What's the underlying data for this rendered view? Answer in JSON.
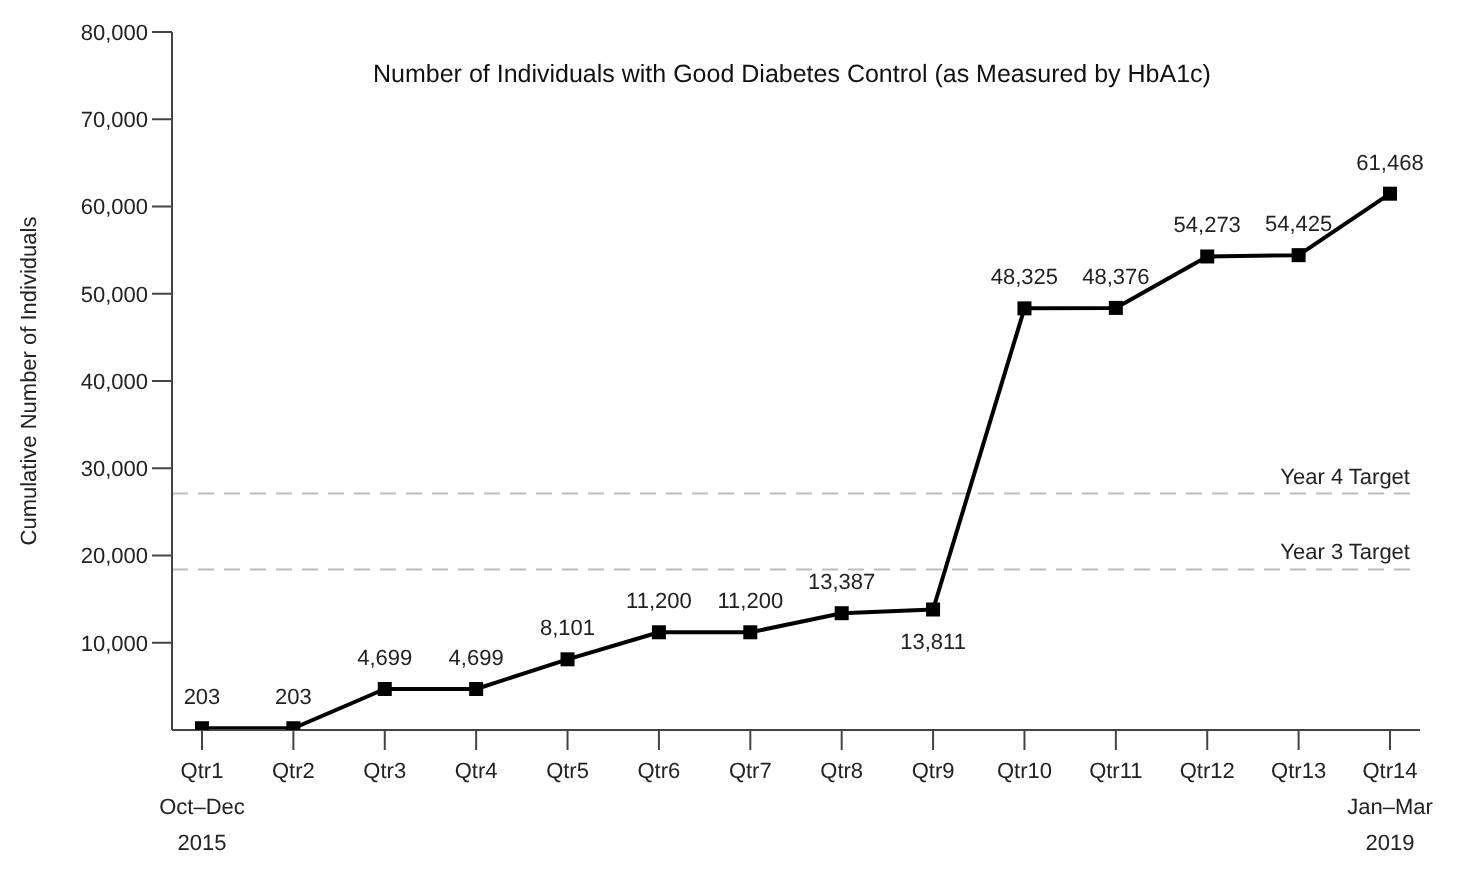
{
  "chart_data": {
    "type": "line",
    "title": "Number of Individuals with Good Diabetes Control (as Measured by HbA1c)",
    "ylabel": "Cumulative Number of Individuals",
    "categories": [
      "Qtr1\nOct–Dec\n2015",
      "Qtr2",
      "Qtr3",
      "Qtr4",
      "Qtr5",
      "Qtr6",
      "Qtr7",
      "Qtr8",
      "Qtr9",
      "Qtr10",
      "Qtr11",
      "Qtr12",
      "Qtr13",
      "Qtr14\nJan–Mar\n2019"
    ],
    "series": [
      {
        "color": "#000000",
        "values": [
          203,
          203,
          4699,
          4699,
          8101,
          11200,
          11200,
          13387,
          13811,
          48325,
          48376,
          54273,
          54425,
          61468
        ],
        "value_labels": [
          "203",
          "203",
          "4,699",
          "4,699",
          "8,101",
          "11,200",
          "11,200",
          "13,387",
          "13,811",
          "48,325",
          "48,376",
          "54,273",
          "54,425",
          "61,468"
        ]
      }
    ],
    "ylim": [
      0,
      80000
    ],
    "yticks": [
      {
        "value": 10000,
        "label": "10,000"
      },
      {
        "value": 20000,
        "label": "20,000"
      },
      {
        "value": 30000,
        "label": "30,000"
      },
      {
        "value": 40000,
        "label": "40,000"
      },
      {
        "value": 50000,
        "label": "50,000"
      },
      {
        "value": 60000,
        "label": "60,000"
      },
      {
        "value": 70000,
        "label": "70,000"
      },
      {
        "value": 80000,
        "label": "80,000"
      }
    ],
    "ref_lines": [
      {
        "axis": "y",
        "value": 27100,
        "label": "Year 4 Target",
        "color": "#bbbbbb",
        "line_style": "dashed"
      },
      {
        "axis": "y",
        "value": 18400,
        "label": "Year 3 Target",
        "color": "#bbbbbb",
        "line_style": "dashed"
      }
    ],
    "marker": "square",
    "line_style": "solid"
  }
}
